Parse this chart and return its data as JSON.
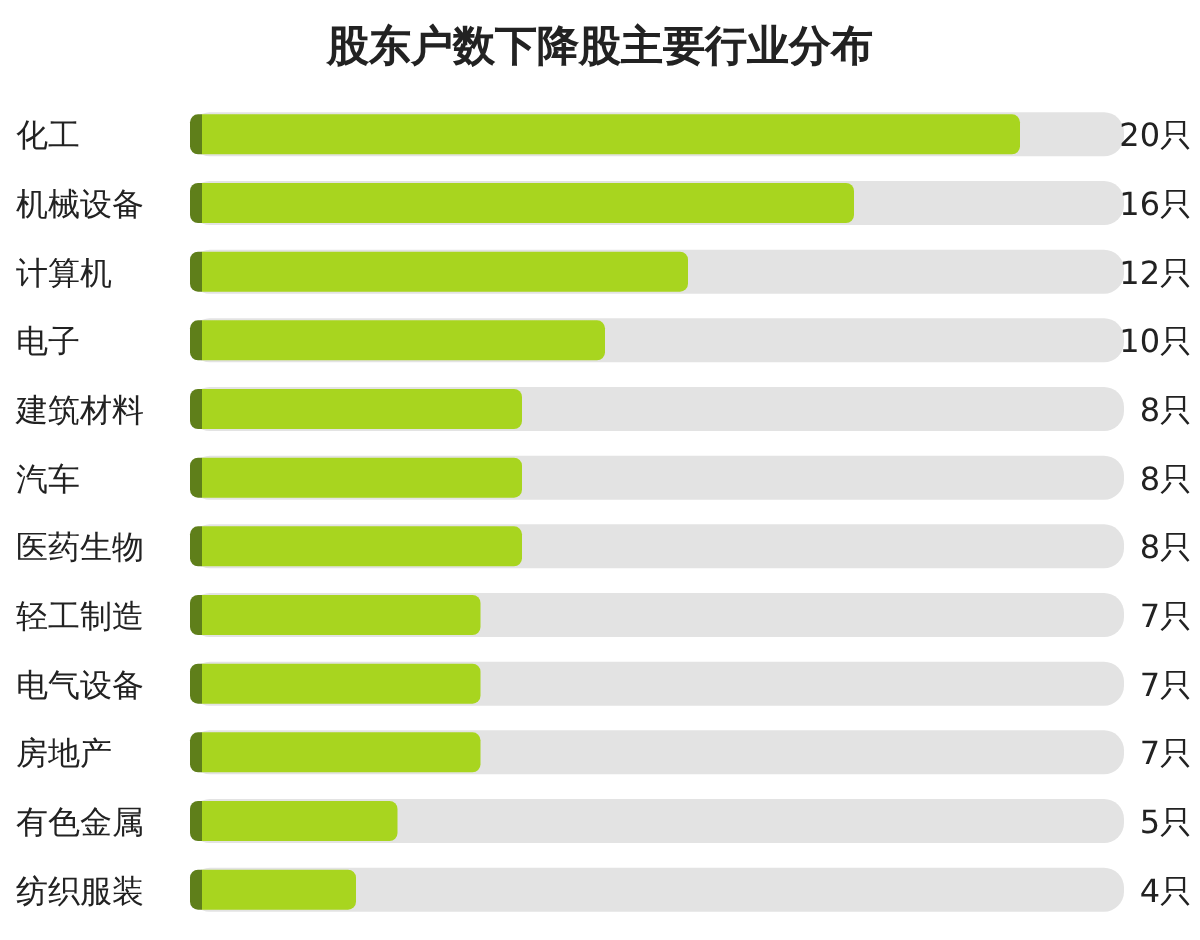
{
  "chart_data": {
    "type": "bar",
    "orientation": "horizontal",
    "title": "股东户数下降股主要行业分布",
    "categories": [
      "化工",
      "机械设备",
      "计算机",
      "电子",
      "建筑材料",
      "汽车",
      "医药生物",
      "轻工制造",
      "电气设备",
      "房地产",
      "有色金属",
      "纺织服装"
    ],
    "values": [
      20,
      16,
      12,
      10,
      8,
      8,
      8,
      7,
      7,
      7,
      5,
      4
    ],
    "value_labels": [
      "20只",
      "16只",
      "12只",
      "10只",
      "8只",
      "8只",
      "8只",
      "7只",
      "7只",
      "7只",
      "5只",
      "4只"
    ],
    "color": "#a8d51f"
  }
}
